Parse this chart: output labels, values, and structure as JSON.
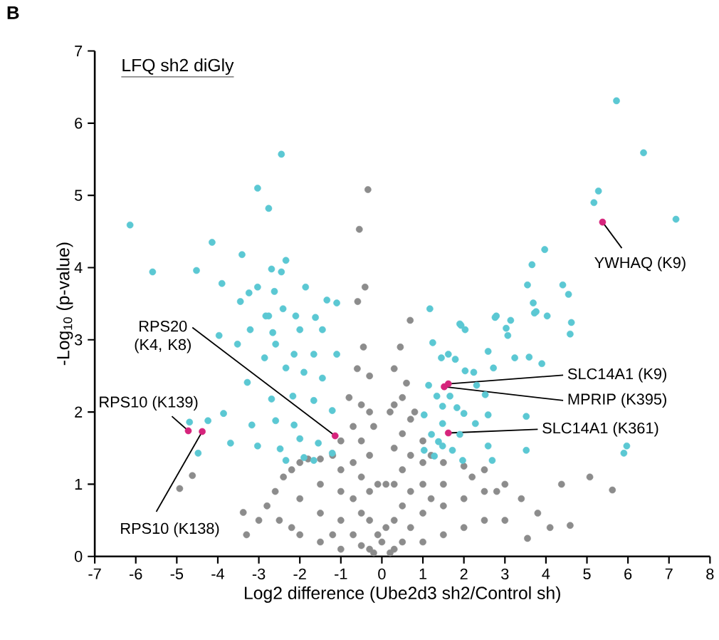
{
  "chart_data": {
    "type": "scatter",
    "title": "LFQ sh2 diGly",
    "xlabel": "Log2 difference (Ube2d3 sh2/Control sh)",
    "ylabel": "-Log$_{10}$ (p-value)",
    "xlim": [
      -7,
      8
    ],
    "xticks": [
      -7,
      -6,
      -5,
      -4,
      -3,
      -2,
      -1,
      0,
      1,
      2,
      3,
      4,
      5,
      6,
      7,
      8
    ],
    "ylim": [
      0,
      7
    ],
    "yticks": [
      0,
      1,
      2,
      3,
      4,
      5,
      6,
      7
    ],
    "grid": false,
    "marker": "circle",
    "series": [
      {
        "color": "#8c8c8c",
        "x": [
          -0.34,
          -0.55,
          -0.41,
          -0.59,
          0.69,
          -4.62,
          -4.93,
          -3.38,
          5.07,
          5.62,
          4.38,
          4.59,
          3.55,
          -3.3,
          -3.0,
          -2.8,
          -2.6,
          -2.4,
          -2.2,
          -2.0,
          -1.8,
          -1.5,
          -1.2,
          -1.0,
          -0.8,
          -0.6,
          -0.45,
          -0.3,
          -0.2,
          -0.1,
          0.0,
          0.1,
          0.2,
          0.3,
          0.45,
          0.6,
          0.8,
          1.0,
          1.2,
          1.5,
          2.0,
          2.5,
          3.0,
          3.4,
          3.8,
          4.1,
          2.2,
          2.8,
          -2.5,
          -2.0,
          -2.0,
          -1.5,
          -1.5,
          -1.5,
          -1.0,
          -1.0,
          -1.0,
          -1.0,
          -0.7,
          -0.7,
          -0.7,
          -0.7,
          -0.5,
          -0.5,
          -0.5,
          -0.5,
          -0.5,
          -0.3,
          -0.3,
          -0.3,
          -0.3,
          -0.3,
          0.3,
          0.3,
          0.3,
          0.3,
          0.3,
          0.5,
          0.5,
          0.5,
          0.5,
          0.5,
          0.7,
          0.7,
          0.7,
          0.7,
          1.0,
          1.0,
          1.0,
          1.0,
          1.5,
          1.5,
          1.5,
          2.0,
          2.0,
          2.5,
          2.5,
          3.0,
          -2.2,
          -1.2,
          1.2,
          -0.1,
          0.1,
          0.2,
          -0.2
        ],
        "values": [
          5.08,
          4.53,
          3.73,
          3.53,
          3.27,
          1.12,
          0.94,
          0.61,
          1.1,
          0.92,
          1.0,
          0.43,
          0.25,
          0.3,
          0.5,
          0.7,
          0.9,
          1.1,
          1.2,
          1.3,
          1.35,
          1.35,
          1.4,
          1.6,
          2.2,
          2.6,
          2.9,
          2.5,
          1.8,
          1.0,
          0.2,
          1.0,
          2.0,
          2.6,
          2.9,
          2.4,
          2.0,
          1.6,
          1.4,
          1.3,
          1.25,
          1.2,
          1.0,
          0.8,
          0.6,
          0.4,
          1.1,
          0.9,
          0.5,
          0.3,
          0.8,
          0.2,
          0.6,
          1.0,
          0.1,
          0.5,
          0.9,
          1.2,
          0.3,
          0.8,
          1.3,
          1.8,
          0.15,
          0.6,
          1.1,
          1.6,
          2.1,
          0.1,
          0.5,
          0.9,
          1.4,
          2.0,
          0.1,
          0.5,
          1.0,
          1.5,
          2.1,
          0.2,
          0.7,
          1.2,
          1.7,
          2.2,
          0.4,
          0.9,
          1.4,
          1.9,
          0.2,
          0.6,
          1.0,
          1.3,
          0.3,
          0.7,
          1.0,
          0.4,
          0.8,
          0.5,
          0.9,
          0.5,
          0.4,
          0.3,
          0.8,
          0.3,
          0.4,
          0.05,
          0.05
        ]
      },
      {
        "color": "#5bc8d3",
        "x": [
          5.72,
          6.38,
          5.28,
          5.17,
          7.17,
          3.97,
          3.66,
          3.55,
          4.41,
          4.55,
          3.69,
          3.76,
          4.03,
          1.17,
          2.79,
          3.14,
          1.9,
          4.62,
          2.76,
          3.72,
          1.93,
          2.03,
          3.03,
          3.07,
          4.59,
          1.24,
          2.59,
          1.62,
          1.45,
          1.79,
          3.24,
          3.59,
          3.9,
          2.72,
          2.24,
          2.03,
          1.14,
          2.31,
          1.34,
          1.66,
          2.52,
          1.48,
          1.83,
          1.03,
          2.0,
          2.59,
          2.28,
          3.52,
          1.48,
          1.21,
          1.9,
          1.38,
          2.59,
          3.52,
          5.97,
          5.9,
          1.03,
          1.72,
          2.69,
          1.97,
          1.28,
          1.48,
          -2.45,
          -3.03,
          -2.76,
          -6.14,
          -4.14,
          -3.41,
          -2.34,
          -5.59,
          -4.52,
          -2.69,
          -2.45,
          -3.9,
          -1.86,
          -3.03,
          -2.62,
          -3.24,
          -3.45,
          -1.34,
          -1.1,
          -2.41,
          -2.1,
          -2.83,
          -1.62,
          -2.76,
          -3.21,
          -2.66,
          -2.0,
          -1.45,
          -3.97,
          -3.52,
          -2.59,
          -2.14,
          -2.86,
          -1.66,
          -1.1,
          -2.34,
          -1.9,
          -1.45,
          -3.28,
          -2.69,
          -2.17,
          -1.66,
          -3.86,
          -1.21,
          -4.24,
          -4.69,
          -4.48,
          -3.17,
          -2.59,
          -2.14,
          -3.69,
          -3.03,
          -2.48,
          -2.0,
          -1.55,
          -1.21,
          -1.9,
          -2.34,
          -1.66
        ],
        "values": [
          6.31,
          5.59,
          5.06,
          4.9,
          4.67,
          4.25,
          4.04,
          3.76,
          3.76,
          3.63,
          3.51,
          3.39,
          3.33,
          3.43,
          3.33,
          3.27,
          3.22,
          3.24,
          3.31,
          3.37,
          3.2,
          3.14,
          3.16,
          3.06,
          3.08,
          2.96,
          2.84,
          2.8,
          2.75,
          2.73,
          2.75,
          2.76,
          2.67,
          2.61,
          2.55,
          2.57,
          2.37,
          2.37,
          2.22,
          2.22,
          2.24,
          2.08,
          2.06,
          1.96,
          1.98,
          1.96,
          1.84,
          1.94,
          1.84,
          1.69,
          1.69,
          1.59,
          1.53,
          1.47,
          1.53,
          1.43,
          1.47,
          1.47,
          1.33,
          1.33,
          1.39,
          1.53,
          5.57,
          5.1,
          4.82,
          4.59,
          4.35,
          4.18,
          4.1,
          3.94,
          3.96,
          3.98,
          3.94,
          3.78,
          3.73,
          3.73,
          3.67,
          3.65,
          3.53,
          3.55,
          3.51,
          3.43,
          3.33,
          3.33,
          3.31,
          3.33,
          3.14,
          3.1,
          3.14,
          3.14,
          3.06,
          2.94,
          2.94,
          2.8,
          2.75,
          2.8,
          2.8,
          2.61,
          2.55,
          2.47,
          2.41,
          2.18,
          2.22,
          2.16,
          1.98,
          2.02,
          1.88,
          1.86,
          1.43,
          1.82,
          1.88,
          1.82,
          1.57,
          1.53,
          1.49,
          1.63,
          1.57,
          1.43,
          1.37,
          1.33,
          1.33
        ]
      },
      {
        "color": "#d6247c",
        "x": [
          5.38,
          -4.72,
          -4.38,
          -1.14,
          1.62,
          1.52,
          1.62
        ],
        "values": [
          4.63,
          1.74,
          1.73,
          1.67,
          2.39,
          2.35,
          1.71
        ]
      }
    ],
    "annotations": [
      "B",
      {
        "text": "YWHAQ (K9)",
        "x": 5.38,
        "y": 4.63
      },
      {
        "text": "RPS20 (K4, K8)",
        "x": -1.14,
        "y": 1.67
      },
      {
        "text": "RPS10 (K139)",
        "x": -4.72,
        "y": 1.74
      },
      {
        "text": "RPS10 (K138)",
        "x": -4.38,
        "y": 1.73
      },
      {
        "text": "SLC14A1 (K9)",
        "x": 1.62,
        "y": 2.39
      },
      {
        "text": "MPRIP (K395)",
        "x": 1.52,
        "y": 2.35
      },
      {
        "text": "SLC14A1 (K361)",
        "x": 1.62,
        "y": 1.71
      }
    ]
  }
}
